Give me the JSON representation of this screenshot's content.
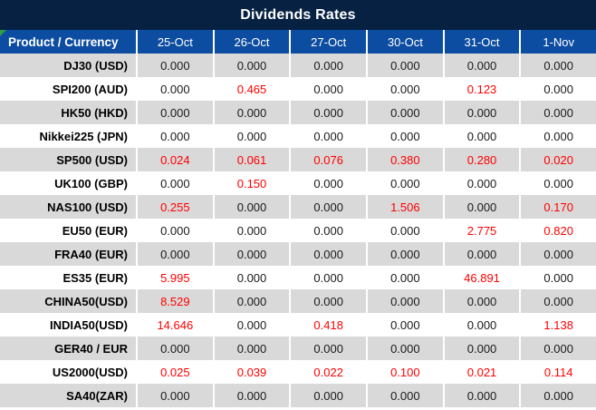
{
  "title": "Dividends Rates",
  "colors": {
    "title_bg": "#062142",
    "header_bg": "#0D4DA1",
    "header_text": "#FFFFFF",
    "alt_row_bg": "#D9D9D9",
    "main_row_bg": "#FFFFFF",
    "value_text": "#1A1A1A",
    "nonzero_value_text": "#FF0000",
    "corner_flag": "#2F9E44"
  },
  "icons": {
    "corner_flag_icon": "green-corner-triangle"
  },
  "table": {
    "product_header": "Product / Currency",
    "date_headers": [
      "25-Oct",
      "26-Oct",
      "27-Oct",
      "30-Oct",
      "31-Oct",
      "1-Nov"
    ],
    "rows": [
      {
        "product": "DJ30 (USD)",
        "values": [
          "0.000",
          "0.000",
          "0.000",
          "0.000",
          "0.000",
          "0.000"
        ],
        "red": [
          false,
          false,
          false,
          false,
          false,
          false
        ]
      },
      {
        "product": "SPI200 (AUD)",
        "values": [
          "0.000",
          "0.465",
          "0.000",
          "0.000",
          "0.123",
          "0.000"
        ],
        "red": [
          false,
          true,
          false,
          false,
          true,
          false
        ]
      },
      {
        "product": "HK50 (HKD)",
        "values": [
          "0.000",
          "0.000",
          "0.000",
          "0.000",
          "0.000",
          "0.000"
        ],
        "red": [
          false,
          false,
          false,
          false,
          false,
          false
        ]
      },
      {
        "product": "Nikkei225 (JPN)",
        "values": [
          "0.000",
          "0.000",
          "0.000",
          "0.000",
          "0.000",
          "0.000"
        ],
        "red": [
          false,
          false,
          false,
          false,
          false,
          false
        ]
      },
      {
        "product": "SP500 (USD)",
        "values": [
          "0.024",
          "0.061",
          "0.076",
          "0.380",
          "0.280",
          "0.020"
        ],
        "red": [
          true,
          true,
          true,
          true,
          true,
          true
        ]
      },
      {
        "product": "UK100 (GBP)",
        "values": [
          "0.000",
          "0.150",
          "0.000",
          "0.000",
          "0.000",
          "0.000"
        ],
        "red": [
          false,
          true,
          false,
          false,
          false,
          false
        ]
      },
      {
        "product": "NAS100 (USD)",
        "values": [
          "0.255",
          "0.000",
          "0.000",
          "1.506",
          "0.000",
          "0.170"
        ],
        "red": [
          true,
          false,
          false,
          true,
          false,
          true
        ]
      },
      {
        "product": "EU50 (EUR)",
        "values": [
          "0.000",
          "0.000",
          "0.000",
          "0.000",
          "2.775",
          "0.820"
        ],
        "red": [
          false,
          false,
          false,
          false,
          true,
          true
        ]
      },
      {
        "product": "FRA40 (EUR)",
        "values": [
          "0.000",
          "0.000",
          "0.000",
          "0.000",
          "0.000",
          "0.000"
        ],
        "red": [
          false,
          false,
          false,
          false,
          false,
          false
        ]
      },
      {
        "product": "ES35 (EUR)",
        "values": [
          "5.995",
          "0.000",
          "0.000",
          "0.000",
          "46.891",
          "0.000"
        ],
        "red": [
          true,
          false,
          false,
          false,
          true,
          false
        ]
      },
      {
        "product": "CHINA50(USD)",
        "values": [
          "8.529",
          "0.000",
          "0.000",
          "0.000",
          "0.000",
          "0.000"
        ],
        "red": [
          true,
          false,
          false,
          false,
          false,
          false
        ]
      },
      {
        "product": "INDIA50(USD)",
        "values": [
          "14.646",
          "0.000",
          "0.418",
          "0.000",
          "0.000",
          "1.138"
        ],
        "red": [
          true,
          false,
          true,
          false,
          false,
          true
        ]
      },
      {
        "product": "GER40 / EUR",
        "values": [
          "0.000",
          "0.000",
          "0.000",
          "0.000",
          "0.000",
          "0.000"
        ],
        "red": [
          false,
          false,
          false,
          false,
          false,
          false
        ]
      },
      {
        "product": "US2000(USD)",
        "values": [
          "0.025",
          "0.039",
          "0.022",
          "0.100",
          "0.021",
          "0.114"
        ],
        "red": [
          true,
          true,
          true,
          true,
          true,
          true
        ]
      },
      {
        "product": "SA40(ZAR)",
        "values": [
          "0.000",
          "0.000",
          "0.000",
          "0.000",
          "0.000",
          "0.000"
        ],
        "red": [
          false,
          false,
          false,
          false,
          false,
          false
        ]
      }
    ]
  },
  "chart_data": {
    "type": "table",
    "title": "Dividends Rates",
    "row_header_label": "Product / Currency",
    "columns": [
      "25-Oct",
      "26-Oct",
      "27-Oct",
      "30-Oct",
      "31-Oct",
      "1-Nov"
    ],
    "row_labels": [
      "DJ30 (USD)",
      "SPI200 (AUD)",
      "HK50 (HKD)",
      "Nikkei225 (JPN)",
      "SP500 (USD)",
      "UK100 (GBP)",
      "NAS100 (USD)",
      "EU50 (EUR)",
      "FRA40 (EUR)",
      "ES35 (EUR)",
      "CHINA50(USD)",
      "INDIA50(USD)",
      "GER40 / EUR",
      "US2000(USD)",
      "SA40(ZAR)"
    ],
    "values": [
      [
        0.0,
        0.0,
        0.0,
        0.0,
        0.0,
        0.0
      ],
      [
        0.0,
        0.465,
        0.0,
        0.0,
        0.123,
        0.0
      ],
      [
        0.0,
        0.0,
        0.0,
        0.0,
        0.0,
        0.0
      ],
      [
        0.0,
        0.0,
        0.0,
        0.0,
        0.0,
        0.0
      ],
      [
        0.024,
        0.061,
        0.076,
        0.38,
        0.28,
        0.02
      ],
      [
        0.0,
        0.15,
        0.0,
        0.0,
        0.0,
        0.0
      ],
      [
        0.255,
        0.0,
        0.0,
        1.506,
        0.0,
        0.17
      ],
      [
        0.0,
        0.0,
        0.0,
        0.0,
        2.775,
        0.82
      ],
      [
        0.0,
        0.0,
        0.0,
        0.0,
        0.0,
        0.0
      ],
      [
        5.995,
        0.0,
        0.0,
        0.0,
        46.891,
        0.0
      ],
      [
        8.529,
        0.0,
        0.0,
        0.0,
        0.0,
        0.0
      ],
      [
        14.646,
        0.0,
        0.418,
        0.0,
        0.0,
        1.138
      ],
      [
        0.0,
        0.0,
        0.0,
        0.0,
        0.0,
        0.0
      ],
      [
        0.025,
        0.039,
        0.022,
        0.1,
        0.021,
        0.114
      ],
      [
        0.0,
        0.0,
        0.0,
        0.0,
        0.0,
        0.0
      ]
    ],
    "note": "non-zero values rendered in red, zeros in black; rows alternate gray/white"
  }
}
